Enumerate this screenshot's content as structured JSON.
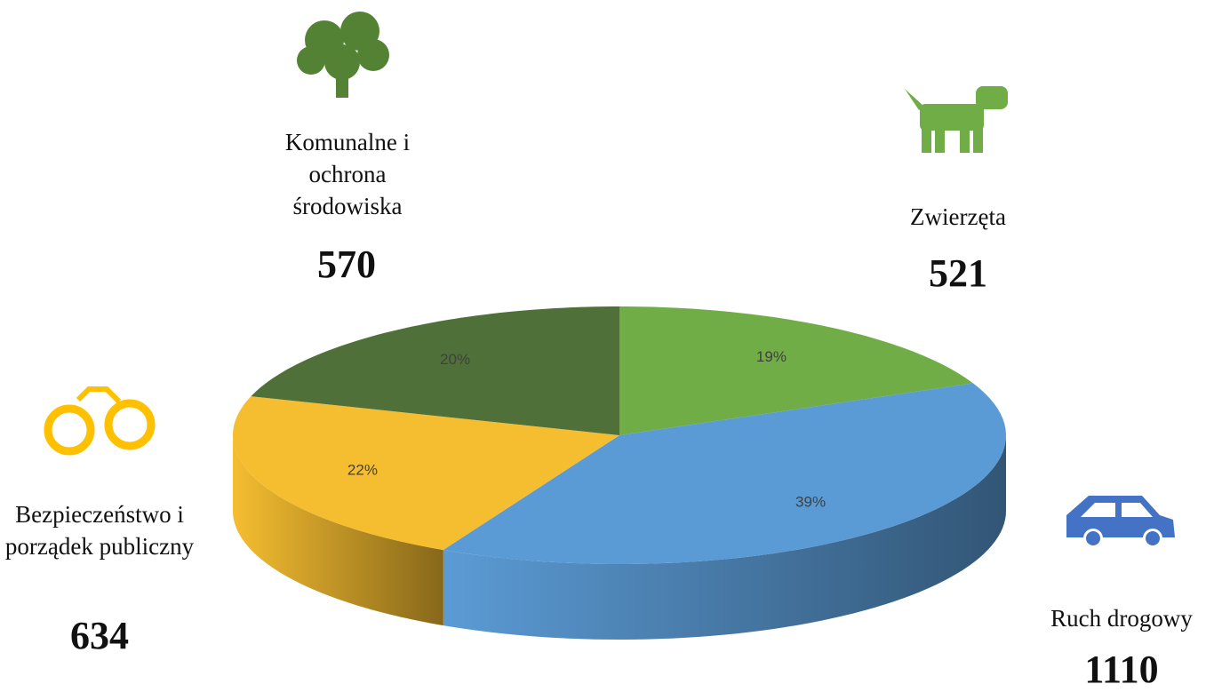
{
  "chart_data": {
    "type": "pie3d",
    "categories": [
      "Zwierzęta",
      "Ruch drogowy",
      "Bezpieczeństwo i porządek publiczny",
      "Komunalne i ochrona środowiska"
    ],
    "values": [
      521,
      1110,
      634,
      570
    ],
    "percent_labels": [
      "19%",
      "39%",
      "22%",
      "20%"
    ],
    "colors": [
      "#70ad47",
      "#5b9bd5",
      "#f5bd30",
      "#4f7039"
    ]
  }
}
